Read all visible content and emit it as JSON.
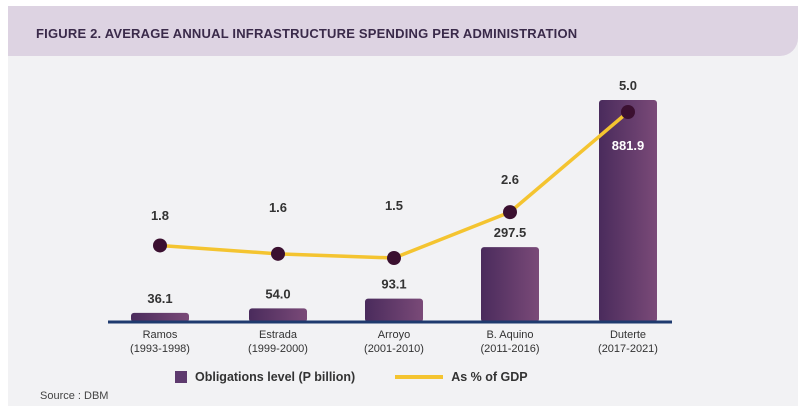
{
  "title": "FIGURE 2. AVERAGE ANNUAL INFRASTRUCTURE SPENDING PER ADMINISTRATION",
  "source": "Source : DBM",
  "colors": {
    "bar": "#5e3a6e",
    "line": "#f4c430",
    "marker": "#3b1030",
    "header": "#ddd3e2"
  },
  "chart_data": {
    "type": "bar",
    "categories": [
      {
        "name": "Ramos",
        "years": "(1993-1998)"
      },
      {
        "name": "Estrada",
        "years": "(1999-2000)"
      },
      {
        "name": "Arroyo",
        "years": "(2001-2010)"
      },
      {
        "name": "B. Aquino",
        "years": "(2011-2016)"
      },
      {
        "name": "Duterte",
        "years": "(2017-2021)"
      }
    ],
    "series": [
      {
        "name": "Obligations level (P billion)",
        "type": "bar",
        "values": [
          36.1,
          54.0,
          93.1,
          297.5,
          881.9
        ],
        "labels": [
          "36.1",
          "54.0",
          "93.1",
          "297.5",
          "881.9"
        ]
      },
      {
        "name": "As % of GDP",
        "type": "line",
        "values": [
          1.8,
          1.6,
          1.5,
          2.6,
          5.0
        ],
        "labels": [
          "1.8",
          "1.6",
          "1.5",
          "2.6",
          "5.0"
        ]
      }
    ],
    "bar_ylim": [
      0,
      1000
    ],
    "line_ylim": [
      0,
      5.6
    ],
    "legend_position": "bottom",
    "grid": false
  }
}
